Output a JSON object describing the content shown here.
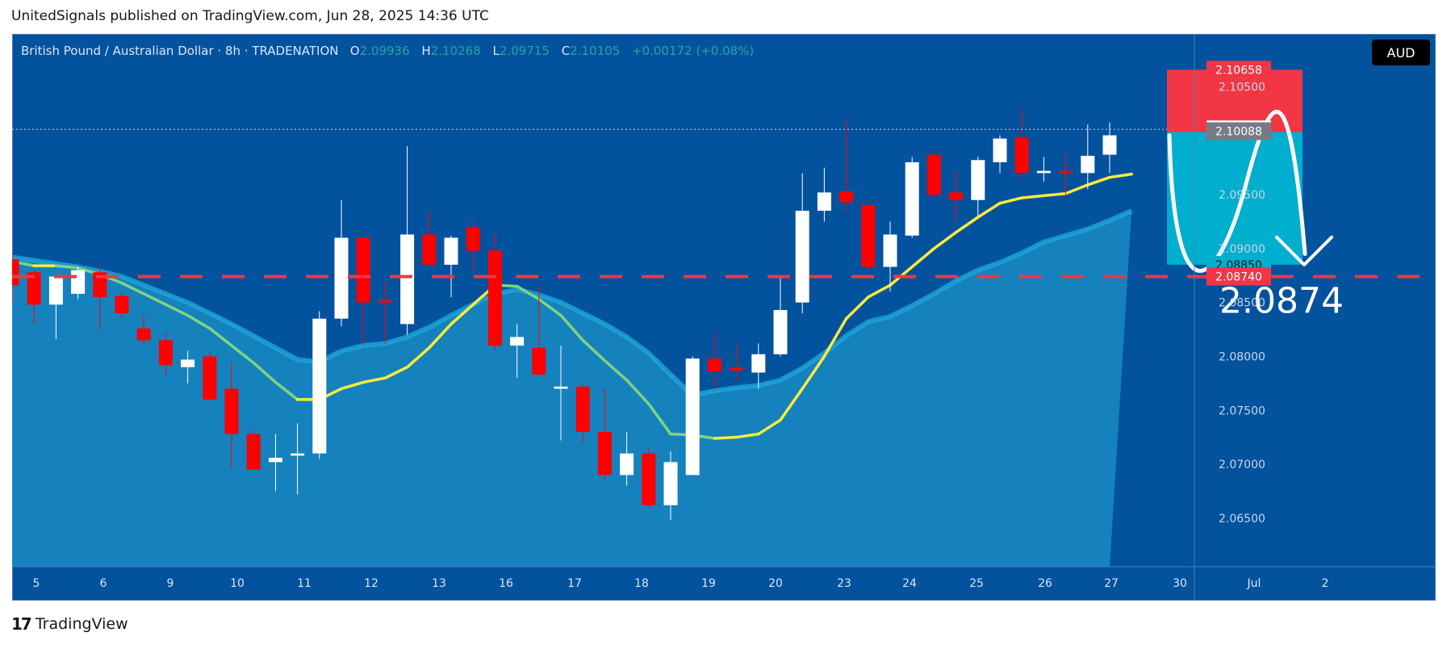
{
  "header": {
    "publisher_line": "UnitedSignals published on TradingView.com, Jun 28, 2025 14:36 UTC"
  },
  "legend": {
    "symbol": "British Pound / Australian Dollar · 8h · TRADENATION",
    "o_label": "O",
    "o_value": "2.09936",
    "h_label": "H",
    "h_value": "2.10268",
    "l_label": "L",
    "l_value": "2.09715",
    "c_label": "C",
    "c_value": "2.10105",
    "change": "+0.00172 (+0.08%)"
  },
  "currency_button": "AUD",
  "footer": {
    "logo_mark": "17",
    "logo_text": "TradingView"
  },
  "colors": {
    "background": "#02529e",
    "up": "#ffffff",
    "down": "#ff0000",
    "ema_fast": "#ffeb3b",
    "ema_slow": "#7fd37f",
    "area_fill": "#1a8fc4",
    "target_line": "#f23645",
    "stop_box": "#f23645",
    "target_box": "#00aecd"
  },
  "chart_data": {
    "type": "candlestick",
    "ylim": [
      2.0605,
      2.1099
    ],
    "y_ticks": [
      "2.10500",
      "2.09500",
      "2.09000",
      "2.08500",
      "2.08000",
      "2.07500",
      "2.07000",
      "2.06500"
    ],
    "x_tick_labels": [
      "5",
      "6",
      "9",
      "10",
      "11",
      "12",
      "13",
      "16",
      "17",
      "18",
      "19",
      "20",
      "23",
      "24",
      "25",
      "26",
      "27",
      "30",
      "Jul",
      "2"
    ],
    "candles": [
      {
        "o": 2.089,
        "h": 2.0895,
        "l": 2.085,
        "c": 2.0866
      },
      {
        "o": 2.0878,
        "h": 2.088,
        "l": 2.083,
        "c": 2.0848
      },
      {
        "o": 2.0848,
        "h": 2.0875,
        "l": 2.0816,
        "c": 2.0874
      },
      {
        "o": 2.0858,
        "h": 2.0883,
        "l": 2.0853,
        "c": 2.088
      },
      {
        "o": 2.0878,
        "h": 2.0885,
        "l": 2.0825,
        "c": 2.0855
      },
      {
        "o": 2.0856,
        "h": 2.086,
        "l": 2.0835,
        "c": 2.084
      },
      {
        "o": 2.0826,
        "h": 2.0838,
        "l": 2.081,
        "c": 2.0815
      },
      {
        "o": 2.0815,
        "h": 2.0822,
        "l": 2.0782,
        "c": 2.0792
      },
      {
        "o": 2.079,
        "h": 2.0805,
        "l": 2.0775,
        "c": 2.0797
      },
      {
        "o": 2.08,
        "h": 2.0805,
        "l": 2.0758,
        "c": 2.076
      },
      {
        "o": 2.077,
        "h": 2.0795,
        "l": 2.0697,
        "c": 2.0728
      },
      {
        "o": 2.0728,
        "h": 2.0732,
        "l": 2.0695,
        "c": 2.0695
      },
      {
        "o": 2.0702,
        "h": 2.0728,
        "l": 2.0675,
        "c": 2.0706
      },
      {
        "o": 2.0708,
        "h": 2.0738,
        "l": 2.0672,
        "c": 2.071
      },
      {
        "o": 2.071,
        "h": 2.0842,
        "l": 2.0705,
        "c": 2.0835
      },
      {
        "o": 2.0835,
        "h": 2.0945,
        "l": 2.0828,
        "c": 2.091
      },
      {
        "o": 2.091,
        "h": 2.091,
        "l": 2.081,
        "c": 2.085
      },
      {
        "o": 2.0852,
        "h": 2.087,
        "l": 2.0812,
        "c": 2.085
      },
      {
        "o": 2.083,
        "h": 2.0995,
        "l": 2.082,
        "c": 2.0913
      },
      {
        "o": 2.0913,
        "h": 2.0935,
        "l": 2.0885,
        "c": 2.0885
      },
      {
        "o": 2.0885,
        "h": 2.0912,
        "l": 2.0855,
        "c": 2.091
      },
      {
        "o": 2.092,
        "h": 2.0925,
        "l": 2.088,
        "c": 2.0898
      },
      {
        "o": 2.0898,
        "h": 2.0915,
        "l": 2.0805,
        "c": 2.081
      },
      {
        "o": 2.081,
        "h": 2.083,
        "l": 2.078,
        "c": 2.0818
      },
      {
        "o": 2.0808,
        "h": 2.0865,
        "l": 2.0785,
        "c": 2.0783
      },
      {
        "o": 2.077,
        "h": 2.081,
        "l": 2.0722,
        "c": 2.0772
      },
      {
        "o": 2.0772,
        "h": 2.0775,
        "l": 2.072,
        "c": 2.073
      },
      {
        "o": 2.073,
        "h": 2.077,
        "l": 2.0685,
        "c": 2.069
      },
      {
        "o": 2.069,
        "h": 2.073,
        "l": 2.068,
        "c": 2.071
      },
      {
        "o": 2.071,
        "h": 2.0715,
        "l": 2.066,
        "c": 2.0662
      },
      {
        "o": 2.0662,
        "h": 2.0712,
        "l": 2.0648,
        "c": 2.0702
      },
      {
        "o": 2.069,
        "h": 2.08,
        "l": 2.069,
        "c": 2.0798
      },
      {
        "o": 2.0798,
        "h": 2.0822,
        "l": 2.077,
        "c": 2.0786
      },
      {
        "o": 2.079,
        "h": 2.0812,
        "l": 2.0778,
        "c": 2.0787
      },
      {
        "o": 2.0785,
        "h": 2.0812,
        "l": 2.077,
        "c": 2.0802
      },
      {
        "o": 2.0802,
        "h": 2.0875,
        "l": 2.08,
        "c": 2.0843
      },
      {
        "o": 2.085,
        "h": 2.097,
        "l": 2.084,
        "c": 2.0935
      },
      {
        "o": 2.0935,
        "h": 2.0975,
        "l": 2.0925,
        "c": 2.0952
      },
      {
        "o": 2.0953,
        "h": 2.102,
        "l": 2.0935,
        "c": 2.0943
      },
      {
        "o": 2.094,
        "h": 2.0945,
        "l": 2.088,
        "c": 2.0883
      },
      {
        "o": 2.0883,
        "h": 2.0925,
        "l": 2.086,
        "c": 2.0913
      },
      {
        "o": 2.0912,
        "h": 2.0985,
        "l": 2.091,
        "c": 2.098
      },
      {
        "o": 2.0987,
        "h": 2.099,
        "l": 2.0945,
        "c": 2.095
      },
      {
        "o": 2.0952,
        "h": 2.0972,
        "l": 2.0925,
        "c": 2.0945
      },
      {
        "o": 2.0945,
        "h": 2.0985,
        "l": 2.093,
        "c": 2.0982
      },
      {
        "o": 2.098,
        "h": 2.1005,
        "l": 2.097,
        "c": 2.1002
      },
      {
        "o": 2.1003,
        "h": 2.103,
        "l": 2.0965,
        "c": 2.097
      },
      {
        "o": 2.097,
        "h": 2.0985,
        "l": 2.0962,
        "c": 2.0972
      },
      {
        "o": 2.0972,
        "h": 2.0988,
        "l": 2.0948,
        "c": 2.097
      },
      {
        "o": 2.097,
        "h": 2.1015,
        "l": 2.0955,
        "c": 2.0986
      },
      {
        "o": 2.0987,
        "h": 2.1017,
        "l": 2.097,
        "c": 2.1005
      }
    ],
    "ema_fast": [
      2.0888,
      2.0884,
      2.0884,
      2.0882,
      2.0876,
      2.0868,
      2.0858,
      2.0848,
      2.0838,
      2.0826,
      2.081,
      2.0794,
      2.0776,
      2.076,
      2.076,
      2.077,
      2.0776,
      2.078,
      2.079,
      2.0808,
      2.083,
      2.0848,
      2.0866,
      2.0865,
      2.0853,
      2.0838,
      2.0815,
      2.0796,
      2.0778,
      2.0756,
      2.0728,
      2.0727,
      2.0724,
      2.0725,
      2.0728,
      2.0741,
      2.077,
      2.08,
      2.0835,
      2.0855,
      2.0866,
      2.0883,
      2.09,
      2.0915,
      2.0929,
      2.0942,
      2.0947,
      2.0949,
      2.0951,
      2.0959,
      2.0966,
      2.0969
    ],
    "ema_slow": [
      2.0892,
      2.0889,
      2.0886,
      2.0883,
      2.0879,
      2.0874,
      2.0866,
      2.0858,
      2.085,
      2.084,
      2.083,
      2.0819,
      2.0808,
      2.0797,
      2.0795,
      2.0805,
      2.081,
      2.0812,
      2.0818,
      2.0827,
      2.0838,
      2.0848,
      2.0858,
      2.0862,
      2.0857,
      2.085,
      2.084,
      2.083,
      2.0818,
      2.0803,
      2.0783,
      2.0764,
      2.0768,
      2.0771,
      2.0773,
      2.0778,
      2.0789,
      2.0803,
      2.0819,
      2.0832,
      2.0837,
      2.0847,
      2.0858,
      2.087,
      2.088,
      2.0887,
      2.0896,
      2.0906,
      2.0912,
      2.0918,
      2.0926,
      2.0935
    ],
    "price_labels": [
      {
        "label": "2.10658",
        "value": 2.10658,
        "bg": "#f23645",
        "fg": "#ffffff"
      },
      {
        "label": "2.10105",
        "value": 2.10105,
        "bg": "#ffffff",
        "fg": "#131722"
      },
      {
        "label": "2.10088",
        "value": 2.10088,
        "bg": "#787b86",
        "fg": "#ffffff"
      },
      {
        "label": "2.08850",
        "value": 2.0885,
        "bg": "#00aecd",
        "fg": "#131722"
      },
      {
        "label": "2.08740",
        "value": 2.0874,
        "bg": "#f23645",
        "fg": "#ffffff"
      }
    ],
    "current_price": 2.10105,
    "target_line_value": 2.0874,
    "target_text": "2.0874",
    "trade_box": {
      "entry": 2.1008,
      "stop": 2.10658,
      "target": 2.0885
    }
  }
}
